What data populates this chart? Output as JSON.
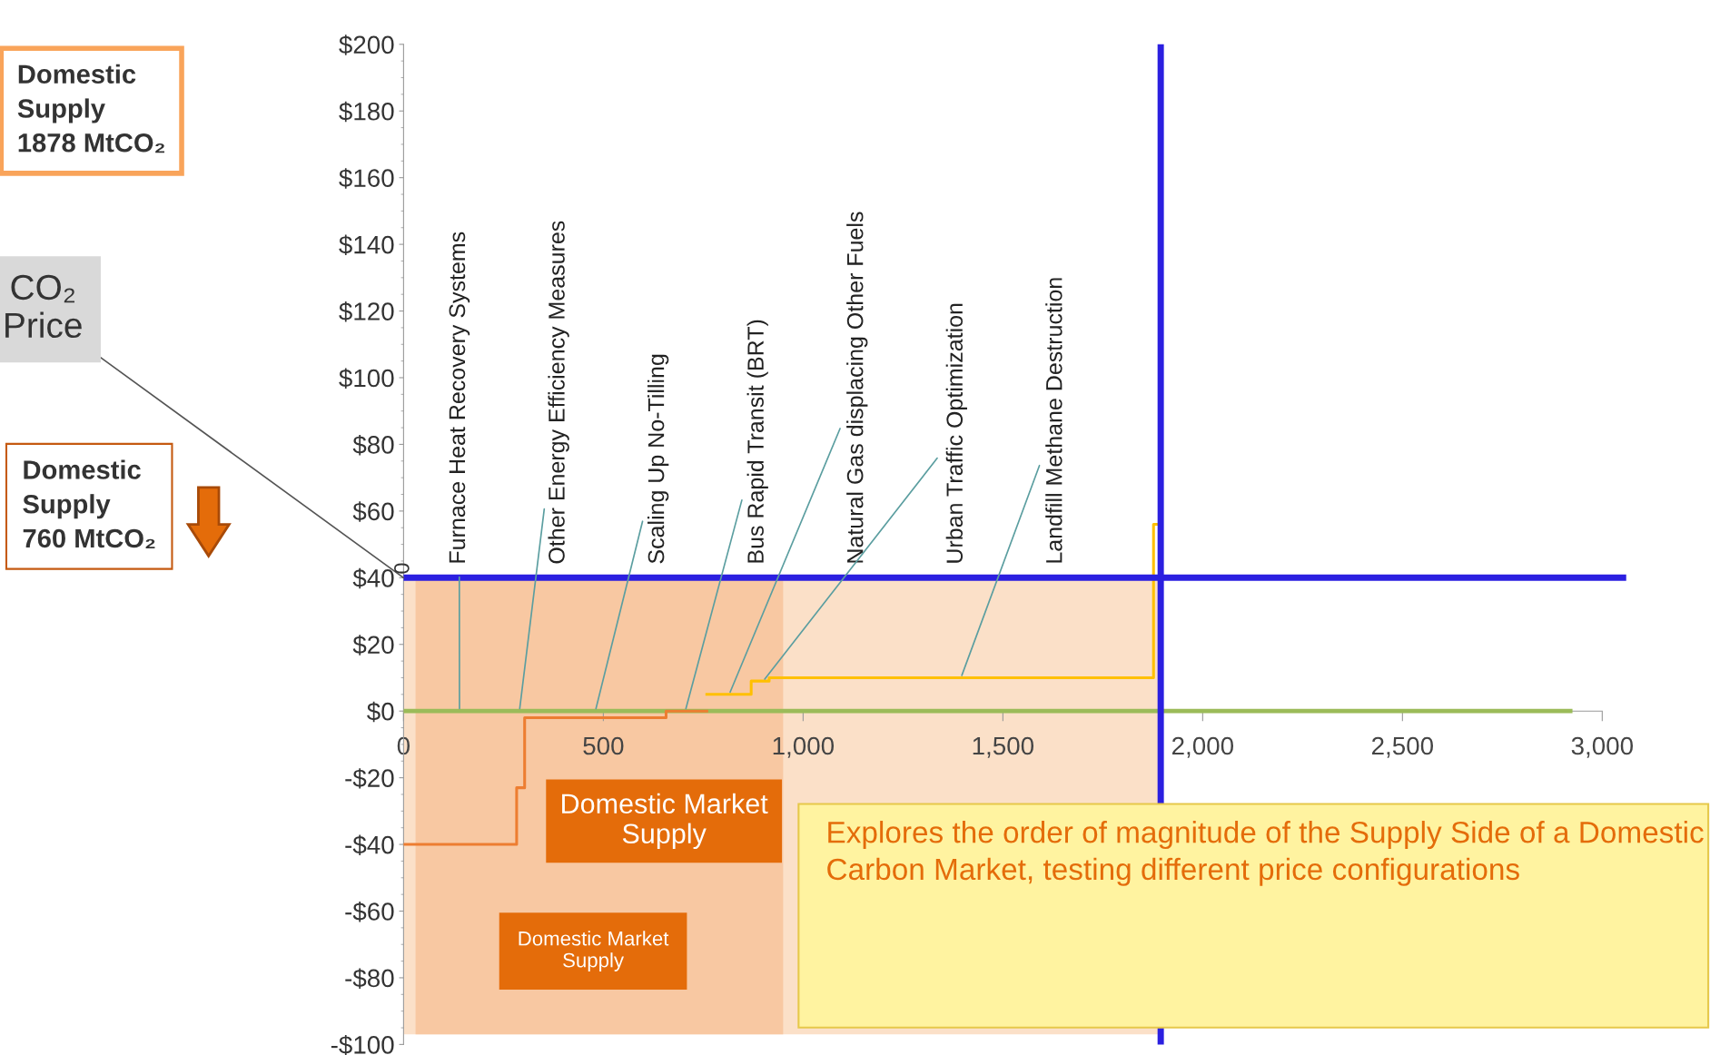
{
  "chart_data": {
    "type": "step",
    "series": [
      {
        "color": "#ed7d31",
        "x": [
          0,
          283,
          303,
          657,
          759
        ],
        "values": [
          -40,
          -23,
          -2,
          0,
          0
        ]
      },
      {
        "color": "#ffc000",
        "x": [
          759,
          870,
          915,
          1877,
          1885
        ],
        "values": [
          5,
          9,
          10,
          56,
          56
        ]
      },
      {
        "type": "line",
        "color": "#9bbb59",
        "x": [
          0,
          2920
        ],
        "values": [
          0,
          0
        ]
      }
    ],
    "xlim": [
      0,
      3060
    ],
    "xticks": [
      0,
      {
        "value": 500,
        "label": "500"
      },
      {
        "value": 1000,
        "label": "1,000"
      },
      {
        "value": 1500,
        "label": "1,500"
      },
      {
        "value": 2000,
        "label": "2,000"
      },
      {
        "value": 2500,
        "label": "2,500"
      },
      {
        "value": 3000,
        "label": "3,000"
      }
    ],
    "ylim": [
      -100,
      200
    ],
    "yticks": [
      {
        "value": -100,
        "label": "-$100"
      },
      {
        "value": -80,
        "label": "-$80"
      },
      {
        "value": -60,
        "label": "-$60"
      },
      {
        "value": -40,
        "label": "-$40"
      },
      {
        "value": -20,
        "label": "-$20"
      },
      {
        "value": 0,
        "label": "$0"
      },
      {
        "value": 20,
        "label": "$20"
      },
      {
        "value": 40,
        "label": "$40"
      },
      {
        "value": 60,
        "label": "$60"
      },
      {
        "value": 80,
        "label": "$80"
      },
      {
        "value": 100,
        "label": "$100"
      },
      {
        "value": 120,
        "label": "$120"
      },
      {
        "value": 140,
        "label": "$140"
      },
      {
        "value": 160,
        "label": "$160"
      },
      {
        "value": 180,
        "label": "$180"
      },
      {
        "value": 200,
        "label": "$200"
      }
    ],
    "ref_lines": [
      {
        "axis": "y",
        "value": 40,
        "color": "#2b1fe0"
      },
      {
        "axis": "x",
        "value": 1895,
        "color": "#2b1fe0"
      }
    ],
    "bands": [
      {
        "axis": "x",
        "from": 0,
        "to": 1890,
        "color": "#fbe0c8",
        "label": "Domestic Market Supply"
      },
      {
        "axis": "x",
        "from": 30,
        "to": 950,
        "color": "#f8c8a2",
        "label": "Domestic Market Supply"
      }
    ],
    "annotations": [
      {
        "text": "Furnace Heat Recovery Systems",
        "x": 140,
        "y": 0
      },
      {
        "text": "Other Energy Efficiency Measures",
        "x": 290,
        "y": 0
      },
      {
        "text": "Scaling Up No-Tilling",
        "x": 480,
        "y": 0
      },
      {
        "text": "Bus Rapid Transit (BRT)",
        "x": 705,
        "y": 0
      },
      {
        "text": "Natural Gas displacing Other Fuels",
        "x": 815,
        "y": 5
      },
      {
        "text": "Urban Traffic Optimization",
        "x": 900,
        "y": 9
      },
      {
        "text": "Landfill Methane Destruction",
        "x": 1395,
        "y": 10
      },
      {
        "text": "CO₂\nPrice",
        "x": 0,
        "y": 40
      },
      {
        "text": "0",
        "x": 0,
        "y": 40
      },
      "Domestic\nSupply\n1878 MtCO₂",
      "Domestic\nSupply\n760 MtCO₂",
      "Explores the order of magnitude of the Supply Side of a Domestic Carbon Market, testing different price configurations"
    ]
  }
}
